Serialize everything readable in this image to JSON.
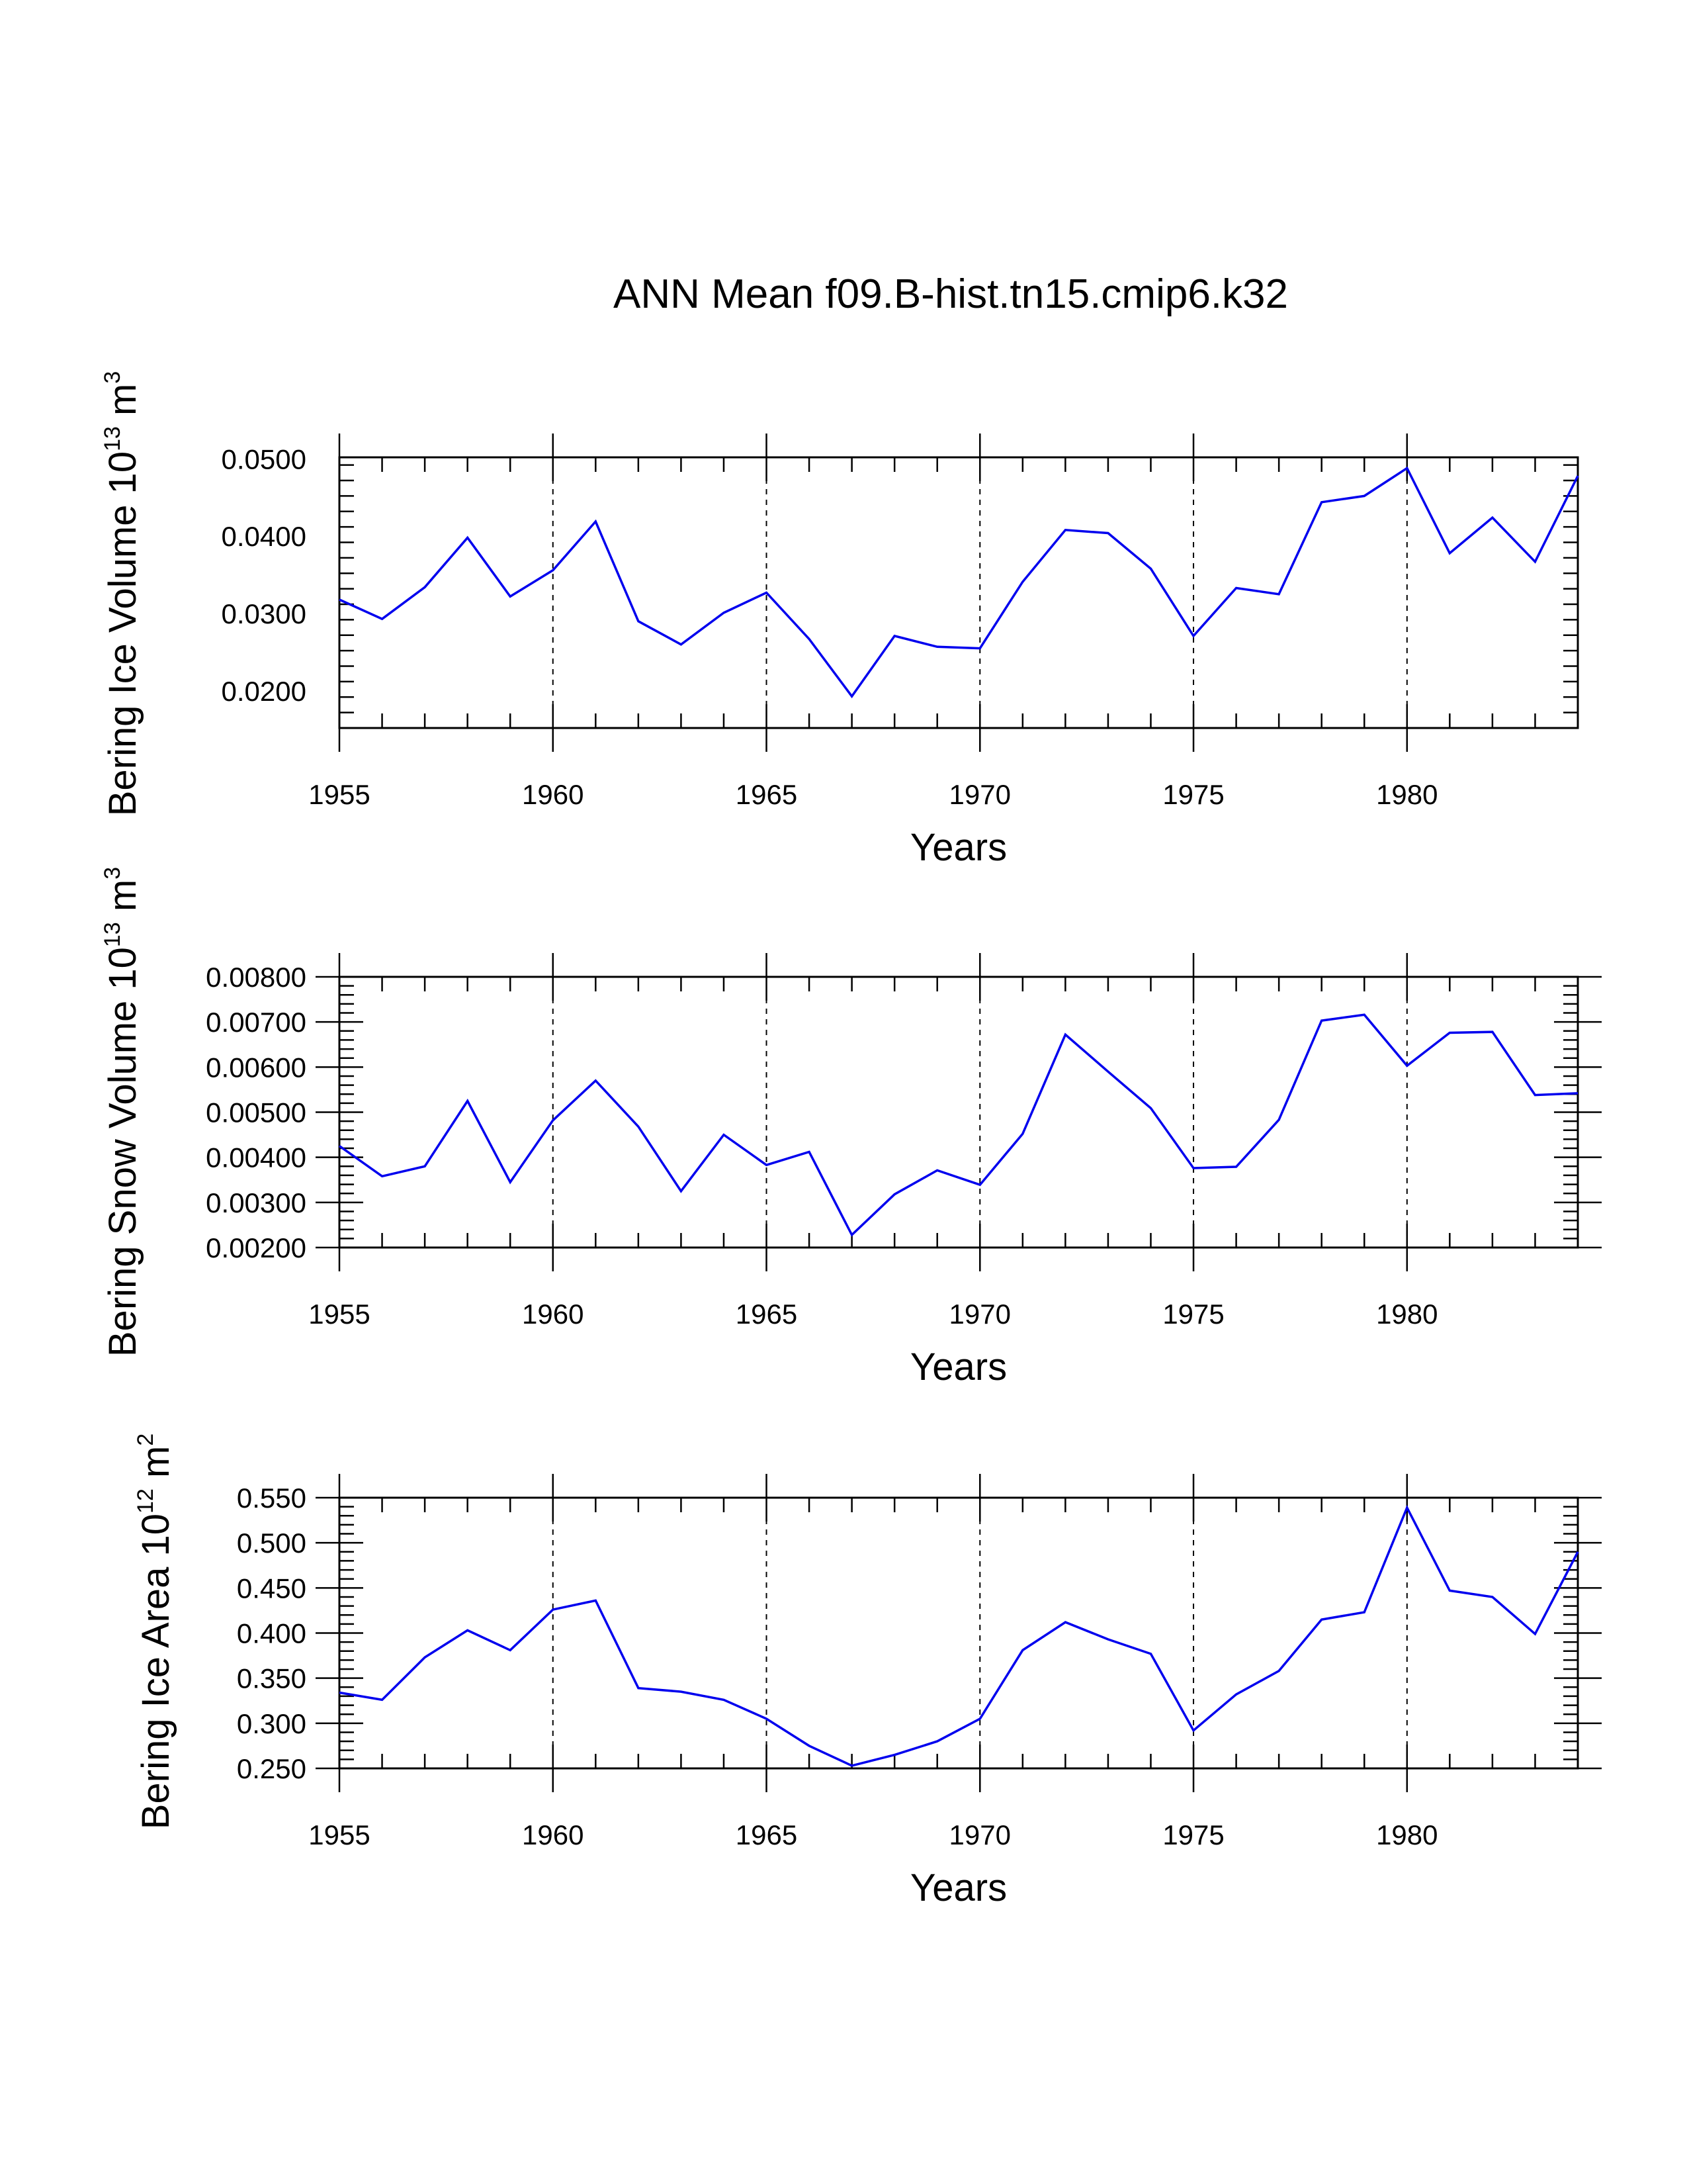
{
  "chart_data": [
    {
      "type": "line",
      "title": "ANN Mean f09.B-hist.tn15.cmip6.k32",
      "xlabel": "Years",
      "ylabel": {
        "text": "Bering Ice Volume 10",
        "exp": "13",
        "unit": " m",
        "unit_exp": "3"
      },
      "xlim": [
        1955,
        1984
      ],
      "ylim": [
        0.0152,
        0.0502
      ],
      "x_ticks": [
        "1955",
        "1960",
        "1965",
        "1970",
        "1975",
        "1980"
      ],
      "y_ticks": [
        "0.0200",
        "0.0300",
        "0.0400",
        "0.0500"
      ],
      "grid_x": [
        1960,
        1965,
        1970,
        1975,
        1980
      ],
      "color": "#0000ee",
      "x": [
        1955,
        1956,
        1957,
        1958,
        1959,
        1960,
        1961,
        1962,
        1963,
        1964,
        1965,
        1966,
        1967,
        1968,
        1969,
        1970,
        1971,
        1972,
        1973,
        1974,
        1975,
        1976,
        1977,
        1978,
        1979,
        1980,
        1981,
        1982,
        1983,
        1984
      ],
      "values": [
        0.0318,
        0.0293,
        0.0334,
        0.0398,
        0.0322,
        0.0356,
        0.0419,
        0.029,
        0.026,
        0.0301,
        0.0327,
        0.0267,
        0.0193,
        0.0271,
        0.0257,
        0.0255,
        0.0341,
        0.0408,
        0.0404,
        0.0358,
        0.0271,
        0.0333,
        0.0325,
        0.0444,
        0.0452,
        0.0488,
        0.0378,
        0.0424,
        0.0367,
        0.0478
      ]
    },
    {
      "type": "line",
      "xlabel": "Years",
      "ylabel": {
        "text": "Bering Snow Volume 10",
        "exp": "13",
        "unit": " m",
        "unit_exp": "3"
      },
      "xlim": [
        1955,
        1984
      ],
      "ylim": [
        0.002,
        0.008
      ],
      "x_ticks": [
        "1955",
        "1960",
        "1965",
        "1970",
        "1975",
        "1980"
      ],
      "y_ticks": [
        "0.00200",
        "0.00300",
        "0.00400",
        "0.00500",
        "0.00600",
        "0.00700",
        "0.00800"
      ],
      "grid_x": [
        1960,
        1965,
        1970,
        1975,
        1980
      ],
      "color": "#0000ee",
      "x": [
        1955,
        1956,
        1957,
        1958,
        1959,
        1960,
        1961,
        1962,
        1963,
        1964,
        1965,
        1966,
        1967,
        1968,
        1969,
        1970,
        1971,
        1972,
        1973,
        1974,
        1975,
        1976,
        1977,
        1978,
        1979,
        1980,
        1981,
        1982,
        1983,
        1984
      ],
      "values": [
        0.00425,
        0.00358,
        0.0038,
        0.00525,
        0.00345,
        0.00482,
        0.0057,
        0.00468,
        0.00325,
        0.0045,
        0.00383,
        0.00412,
        0.00228,
        0.00318,
        0.00371,
        0.00339,
        0.00452,
        0.00672,
        0.0059,
        0.00509,
        0.00376,
        0.00379,
        0.00483,
        0.00703,
        0.00716,
        0.00603,
        0.00676,
        0.00678,
        0.00538,
        0.00542
      ]
    },
    {
      "type": "line",
      "xlabel": "Years",
      "ylabel": {
        "text": "Bering Ice Area 10",
        "exp": "12",
        "unit": " m",
        "unit_exp": "2"
      },
      "xlim": [
        1955,
        1984
      ],
      "ylim": [
        0.25,
        0.55
      ],
      "x_ticks": [
        "1955",
        "1960",
        "1965",
        "1970",
        "1975",
        "1980"
      ],
      "y_ticks": [
        "0.250",
        "0.300",
        "0.350",
        "0.400",
        "0.450",
        "0.500",
        "0.550"
      ],
      "grid_x": [
        1960,
        1965,
        1970,
        1975,
        1980
      ],
      "color": "#0000ee",
      "x": [
        1955,
        1956,
        1957,
        1958,
        1959,
        1960,
        1961,
        1962,
        1963,
        1964,
        1965,
        1966,
        1967,
        1968,
        1969,
        1970,
        1971,
        1972,
        1973,
        1974,
        1975,
        1976,
        1977,
        1978,
        1979,
        1980,
        1981,
        1982,
        1983,
        1984
      ],
      "values": [
        0.334,
        0.326,
        0.373,
        0.403,
        0.381,
        0.426,
        0.436,
        0.339,
        0.335,
        0.326,
        0.305,
        0.275,
        0.253,
        0.265,
        0.28,
        0.305,
        0.381,
        0.412,
        0.393,
        0.377,
        0.292,
        0.332,
        0.358,
        0.415,
        0.423,
        0.539,
        0.447,
        0.44,
        0.399,
        0.49
      ]
    }
  ]
}
